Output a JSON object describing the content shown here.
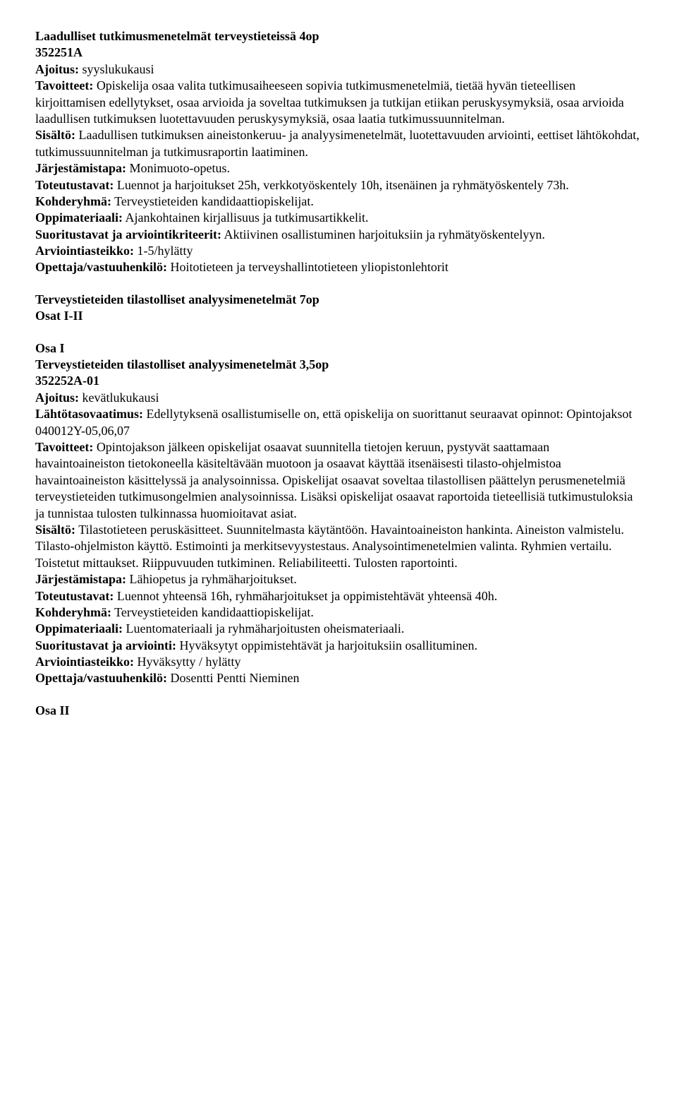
{
  "course1": {
    "title": "Laadulliset tutkimusmenetelmät terveystieteissä 4op",
    "code": "352251A",
    "ajoitus_label": "Ajoitus:",
    "ajoitus_value": " syyslukukausi",
    "tavoitteet_label": "Tavoitteet:",
    "tavoitteet_value": " Opiskelija osaa valita tutkimusaiheeseen sopivia tutkimusmenetelmiä, tietää hyvän tieteellisen kirjoittamisen edellytykset, osaa arvioida ja soveltaa tutkimuksen ja tutkijan etiikan peruskysymyksiä, osaa arvioida laadullisen tutkimuksen luotettavuuden peruskysymyksiä, osaa laatia tutkimussuunnitelman.",
    "sisalto_label": "Sisältö:",
    "sisalto_value": " Laadullisen tutkimuksen aineistonkeruu- ja analyysimenetelmät, luotettavuuden arviointi, eettiset lähtökohdat, tutkimussuunnitelman ja tutkimusraportin laatiminen.",
    "jarjestamistapa_label": "Järjestämistapa:",
    "jarjestamistapa_value": " Monimuoto-opetus.",
    "toteutustavat_label": "Toteutustavat:",
    "toteutustavat_value": " Luennot ja harjoitukset 25h, verkkotyöskentely 10h, itsenäinen ja ryhmätyöskentely 73h.",
    "kohderyhma_label": "Kohderyhmä:",
    "kohderyhma_value": " Terveystieteiden kandidaattiopiskelijat.",
    "oppimateriaali_label": "Oppimateriaali:",
    "oppimateriaali_value": " Ajankohtainen kirjallisuus ja tutkimusartikkelit.",
    "suoritustavat_label": "Suoritustavat ja arviointikriteerit:",
    "suoritustavat_value": " Aktiivinen osallistuminen harjoituksiin ja ryhmätyöskentelyyn.",
    "arviointiasteikko_label": "Arviointiasteikko:",
    "arviointiasteikko_value": " 1-5/hylätty",
    "opettaja_label": "Opettaja/vastuuhenkilö:",
    "opettaja_value": " Hoitotieteen ja terveyshallintotieteen yliopistonlehtorit"
  },
  "course2_header": {
    "title": "Terveystieteiden tilastolliset analyysimenetelmät 7op",
    "parts": "Osat I-II"
  },
  "course2_part1": {
    "osa": "Osa I",
    "title": "Terveystieteiden tilastolliset analyysimenetelmät 3,5op",
    "code": "352252A-01",
    "ajoitus_label": "Ajoitus:",
    "ajoitus_value": " kevätlukukausi",
    "lahtotaso_label": "Lähtötasovaatimus:",
    "lahtotaso_value": " Edellytyksenä osallistumiselle on, että opiskelija on suorittanut seuraavat opinnot: Opintojaksot 040012Y-05,06,07",
    "tavoitteet_label": "Tavoitteet:",
    "tavoitteet_value": " Opintojakson jälkeen opiskelijat osaavat suunnitella tietojen keruun, pystyvät saattamaan havaintoaineiston tietokoneella käsiteltävään muotoon ja osaavat käyttää itsenäisesti tilasto-ohjelmistoa havaintoaineiston käsittelyssä ja analysoinnissa. Opiskelijat osaavat soveltaa tilastollisen päättelyn perusmenetelmiä terveystieteiden tutkimusongelmien analysoinnissa. Lisäksi opiskelijat osaavat raportoida tieteellisiä tutkimustuloksia ja tunnistaa tulosten tulkinnassa huomioitavat asiat.",
    "sisalto_label": "Sisältö:",
    "sisalto_value": " Tilastotieteen peruskäsitteet. Suunnitelmasta käytäntöön. Havaintoaineiston hankinta. Aineiston valmistelu. Tilasto-ohjelmiston käyttö. Estimointi ja merkitsevyystestaus. Analysointimenetelmien valinta. Ryhmien vertailu. Toistetut mittaukset. Riippuvuuden tutkiminen. Reliabiliteetti. Tulosten raportointi.",
    "jarjestamistapa_label": "Järjestämistapa:",
    "jarjestamistapa_value": " Lähiopetus ja ryhmäharjoitukset.",
    "toteutustavat_label": "Toteutustavat:",
    "toteutustavat_value": " Luennot yhteensä 16h, ryhmäharjoitukset ja oppimistehtävät yhteensä 40h.",
    "kohderyhma_label": "Kohderyhmä:",
    "kohderyhma_value": " Terveystieteiden kandidaattiopiskelijat.",
    "oppimateriaali_label": "Oppimateriaali:",
    "oppimateriaali_value": " Luentomateriaali ja ryhmäharjoitusten oheismateriaali.",
    "suoritustavat_label": "Suoritustavat ja arviointi:",
    "suoritustavat_value": " Hyväksytyt oppimistehtävät ja harjoituksiin osallituminen.",
    "arviointiasteikko_label": "Arviointiasteikko:",
    "arviointiasteikko_value": " Hyväksytty / hylätty",
    "opettaja_label": "Opettaja/vastuuhenkilö:",
    "opettaja_value": " Dosentti Pentti Nieminen"
  },
  "course2_part2": {
    "osa": "Osa II"
  }
}
